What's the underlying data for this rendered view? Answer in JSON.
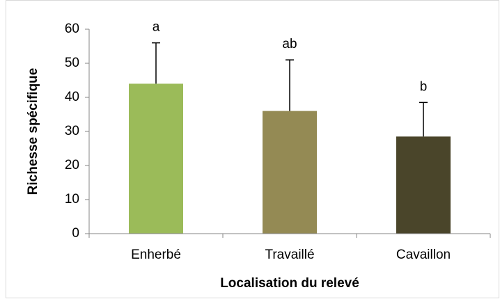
{
  "chart_data": {
    "type": "bar",
    "categories": [
      "Enherbé",
      "Travaillé",
      "Cavaillon"
    ],
    "values": [
      44,
      36,
      28.5
    ],
    "errors": [
      12,
      15,
      10
    ],
    "annotations": [
      "a",
      "ab",
      "b"
    ],
    "colors": [
      "#9bbb59",
      "#948a54",
      "#4a452a"
    ],
    "ylim": [
      0,
      60
    ],
    "yticks": [
      0,
      10,
      20,
      30,
      40,
      50,
      60
    ],
    "x_label": "Localisation du relevé",
    "y_label": "Richesse spécifique",
    "grid": false
  }
}
